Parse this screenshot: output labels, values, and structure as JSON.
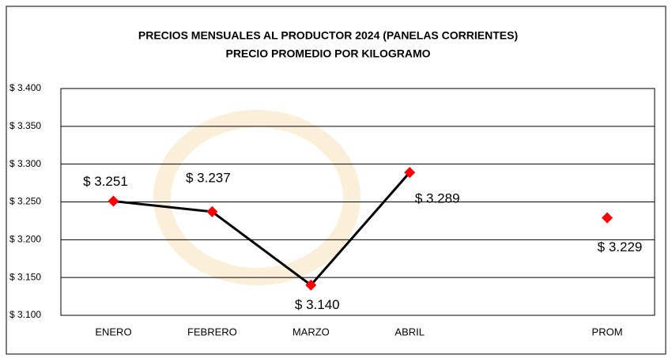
{
  "chart_data": {
    "type": "line",
    "title": "PRECIOS MENSUALES AL PRODUCTOR 2024 (PANELAS CORRIENTES)",
    "subtitle": "PRECIO PROMEDIO POR KILOGRAMO",
    "categories": [
      "ENERO",
      "FEBRERO",
      "MARZO",
      "ABRIL",
      null,
      "PROM"
    ],
    "values": [
      3251,
      3237,
      3140,
      3289,
      null,
      3229
    ],
    "value_labels": [
      "$ 3.251",
      "$ 3.237",
      "$ 3.140",
      "$ 3.289",
      null,
      "$ 3.229"
    ],
    "line_color": "#000000",
    "marker_color": "#ff0000",
    "ylim": [
      3100,
      3400
    ],
    "yticks": [
      {
        "value": 3100,
        "label": "$ 3.100"
      },
      {
        "value": 3150,
        "label": "$ 3.150"
      },
      {
        "value": 3200,
        "label": "$ 3.200"
      },
      {
        "value": 3250,
        "label": "$ 3.250"
      },
      {
        "value": 3300,
        "label": "$ 3.300"
      },
      {
        "value": 3350,
        "label": "$ 3.350"
      },
      {
        "value": 3400,
        "label": "$ 3.400"
      }
    ],
    "grid": true
  }
}
